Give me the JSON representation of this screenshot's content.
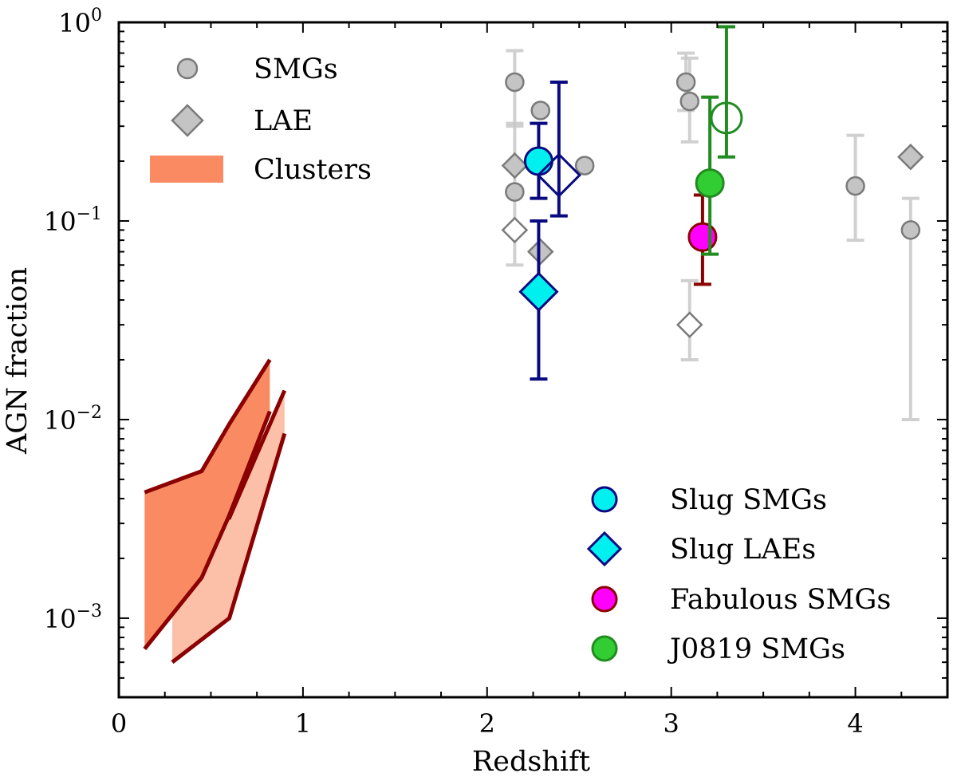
{
  "chart_data": {
    "type": "scatter",
    "xlabel": "Redshift",
    "ylabel": "AGN fraction",
    "xlim": [
      0,
      4.5
    ],
    "ylim": [
      0.0004,
      1.0
    ],
    "yscale": "log",
    "x_ticks": [
      {
        "value": 0,
        "label": "0"
      },
      {
        "value": 1,
        "label": "1"
      },
      {
        "value": 2,
        "label": "2"
      },
      {
        "value": 3,
        "label": "3"
      },
      {
        "value": 4,
        "label": "4"
      }
    ],
    "y_ticks": [
      {
        "value": 0.001,
        "base": "10",
        "exp": "−3"
      },
      {
        "value": 0.01,
        "base": "10",
        "exp": "−2"
      },
      {
        "value": 0.1,
        "base": "10",
        "exp": "−1"
      },
      {
        "value": 1,
        "base": "10",
        "exp": "0"
      }
    ],
    "colors": {
      "gray_fill": "#c4c4c4",
      "gray_edge": "#7a7a7a",
      "gray_err": "#c8c8c8",
      "cluster_dark": "#fa8a62",
      "cluster_light": "#fcc0a8",
      "cluster_line": "#8b0000",
      "slug_fill": "#00f0f0",
      "slug_edge": "#0a0a80",
      "fab_fill": "#ff00ff",
      "fab_err": "#8b0000",
      "j0819_fill": "#32cd32",
      "j0819_edge": "#228b22"
    },
    "legend_upper": [
      {
        "label": "SMGs",
        "marker": "circle"
      },
      {
        "label": "LAE",
        "marker": "diamond"
      },
      {
        "label": "Clusters",
        "marker": "band"
      }
    ],
    "legend_lower": [
      {
        "label": "Slug SMGs",
        "marker": "circle",
        "fill": "#00f0f0",
        "edge": "#0a0a80"
      },
      {
        "label": "Slug LAEs",
        "marker": "diamond",
        "fill": "#00f0f0",
        "edge": "#0a0a80"
      },
      {
        "label": "Fabulous SMGs",
        "marker": "circle",
        "fill": "#ff00ff",
        "edge": "#8b0000"
      },
      {
        "label": "J0819 SMGs",
        "marker": "circle",
        "fill": "#32cd32",
        "edge": "#228b22"
      }
    ],
    "clusters": {
      "band_dark": {
        "x": [
          0.14,
          0.45,
          0.6,
          0.82
        ],
        "upper": [
          0.0043,
          0.0055,
          0.0095,
          0.02
        ],
        "lower": [
          0.0007,
          0.0016,
          0.0033,
          0.011
        ]
      },
      "band_light": {
        "x": [
          0.29,
          0.6,
          0.9
        ],
        "upper": [
          0.0026,
          0.0032,
          0.014
        ],
        "lower": [
          0.0006,
          0.001,
          0.0085
        ]
      }
    },
    "literature_smgs": [
      {
        "x": 2.15,
        "y": 0.5,
        "ylo": 0.3,
        "yhi": 0.72,
        "filled": true
      },
      {
        "x": 2.29,
        "y": 0.36,
        "filled": true
      },
      {
        "x": 2.15,
        "y": 0.14,
        "filled": true
      },
      {
        "x": 2.53,
        "y": 0.19,
        "filled": true
      },
      {
        "x": 3.08,
        "y": 0.5,
        "ylo": 0.36,
        "yhi": 0.7,
        "filled": true
      },
      {
        "x": 3.1,
        "y": 0.4,
        "ylo": 0.25,
        "yhi": 0.66,
        "filled": true
      },
      {
        "x": 4.0,
        "y": 0.15,
        "ylo": 0.08,
        "yhi": 0.27,
        "filled": true
      },
      {
        "x": 4.3,
        "y": 0.09,
        "ylo": 0.01,
        "yhi": 0.13,
        "filled": true
      }
    ],
    "literature_laes": [
      {
        "x": 2.15,
        "y": 0.19,
        "ylo": 0.06,
        "yhi": 0.31,
        "filled": true
      },
      {
        "x": 2.29,
        "y": 0.07,
        "filled": true
      },
      {
        "x": 2.15,
        "y": 0.09,
        "filled": false
      },
      {
        "x": 3.1,
        "y": 0.03,
        "ylo": 0.02,
        "yhi": 0.05,
        "filled": false
      },
      {
        "x": 4.3,
        "y": 0.21,
        "filled": true
      }
    ],
    "series": [
      {
        "name": "Slug SMGs",
        "marker": "circle",
        "x": 2.28,
        "y": 0.2,
        "ylo": 0.13,
        "yhi": 0.31,
        "filled": true,
        "fill": "#00f0f0",
        "edge": "#0a0a80",
        "err": "#0a0a80"
      },
      {
        "name": "Slug SMGs (open)",
        "marker": "diamond",
        "x": 2.39,
        "y": 0.17,
        "ylo": 0.106,
        "yhi": 0.5,
        "filled": false,
        "fill": "#00f0f0",
        "edge": "#0a0a80",
        "err": "#0a0a80"
      },
      {
        "name": "Slug LAEs",
        "marker": "diamond",
        "x": 2.28,
        "y": 0.044,
        "ylo": 0.016,
        "yhi": 0.1,
        "filled": true,
        "fill": "#00f0f0",
        "edge": "#0a0a80",
        "err": "#0a0a80"
      },
      {
        "name": "Fabulous SMGs",
        "marker": "circle",
        "x": 3.17,
        "y": 0.083,
        "ylo": 0.048,
        "yhi": 0.135,
        "filled": true,
        "fill": "#ff00ff",
        "edge": "#8b0000",
        "err": "#8b0000"
      },
      {
        "name": "J0819 SMGs",
        "marker": "circle",
        "x": 3.21,
        "y": 0.155,
        "ylo": 0.068,
        "yhi": 0.42,
        "filled": true,
        "fill": "#32cd32",
        "edge": "#228b22",
        "err": "#228b22"
      },
      {
        "name": "J0819 SMGs (open)",
        "marker": "circle",
        "x": 3.3,
        "y": 0.33,
        "ylo": 0.21,
        "yhi": 0.95,
        "filled": false,
        "fill": "#32cd32",
        "edge": "#228b22",
        "err": "#228b22"
      }
    ]
  }
}
